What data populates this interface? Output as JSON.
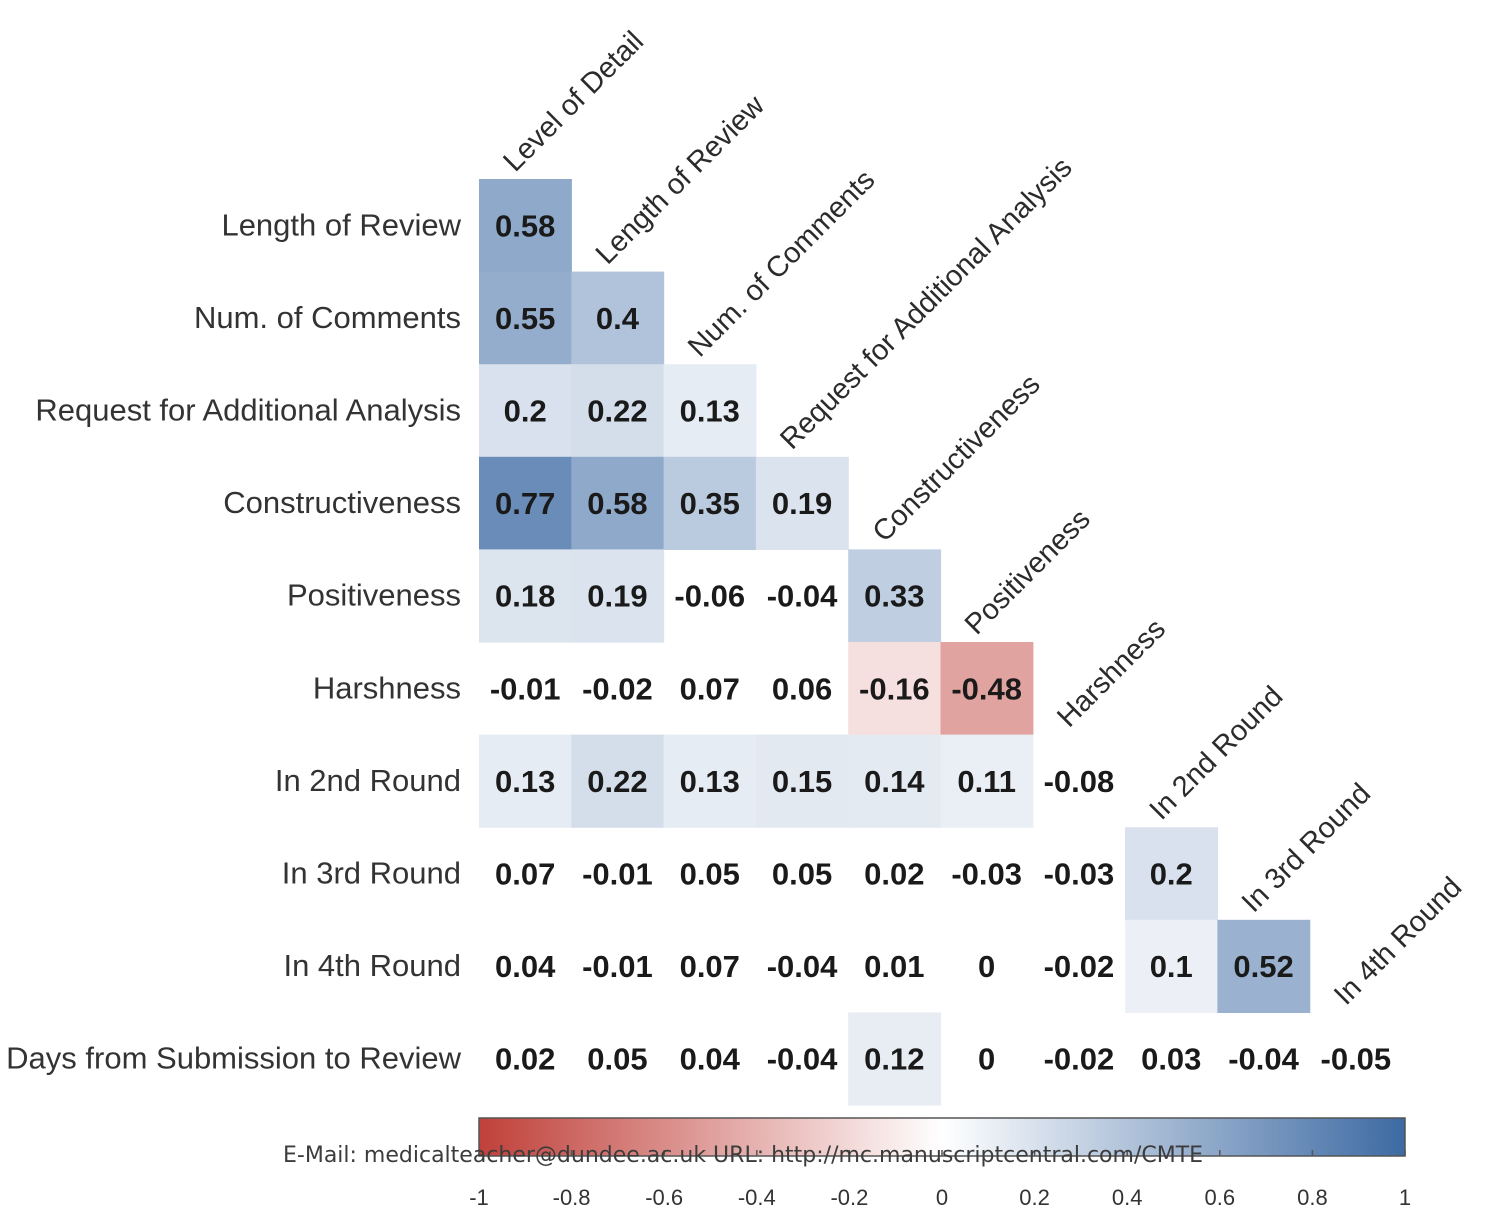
{
  "chart_data": {
    "type": "heatmap",
    "subtype": "lower-triangle correlation matrix",
    "row_labels": [
      "Length of Review",
      "Num. of Comments",
      "Request for Additional Analysis",
      "Constructiveness",
      "Positiveness",
      "Harshness",
      "In 2nd Round",
      "In 3rd Round",
      "In 4th Round",
      "Days from Submission to Review"
    ],
    "column_labels": [
      "Level of Detail",
      "Length of Review",
      "Num. of Comments",
      "Request for Additional Analysis",
      "Constructiveness",
      "Positiveness",
      "Harshness",
      "In 2nd Round",
      "In 3rd Round",
      "In 4th Round"
    ],
    "values": [
      [
        "0.58"
      ],
      [
        "0.55",
        "0.4"
      ],
      [
        "0.2",
        "0.22",
        "0.13"
      ],
      [
        "0.77",
        "0.58",
        "0.35",
        "0.19"
      ],
      [
        "0.18",
        "0.19",
        "-0.06",
        "-0.04",
        "0.33"
      ],
      [
        "-0.01",
        "-0.02",
        "0.07",
        "0.06",
        "-0.16",
        "-0.48"
      ],
      [
        "0.13",
        "0.22",
        "0.13",
        "0.15",
        "0.14",
        "0.11",
        "-0.08"
      ],
      [
        "0.07",
        "-0.01",
        "0.05",
        "0.05",
        "0.02",
        "-0.03",
        "-0.03",
        "0.2"
      ],
      [
        "0.04",
        "-0.01",
        "0.07",
        "-0.04",
        "0.01",
        "0",
        "-0.02",
        "0.1",
        "0.52"
      ],
      [
        "0.02",
        "0.05",
        "0.04",
        "-0.04",
        "0.12",
        "0",
        "-0.02",
        "0.03",
        "-0.04",
        "-0.05"
      ]
    ],
    "color_scale": {
      "min": -1,
      "max": 1,
      "negative_color": "#c0403a",
      "neutral_color": "#ffffff",
      "positive_color": "#3d6aa3",
      "significance_threshold": 0.1,
      "tick_labels": [
        "-1",
        "-0.8",
        "-0.6",
        "-0.4",
        "-0.2",
        "0",
        "0.2",
        "0.4",
        "0.6",
        "0.8",
        "1"
      ]
    }
  },
  "footer": {
    "text": "E-Mail: medicalteacher@dundee.ac.uk URL: http://mc.manuscriptcentral.com/CMTE"
  }
}
